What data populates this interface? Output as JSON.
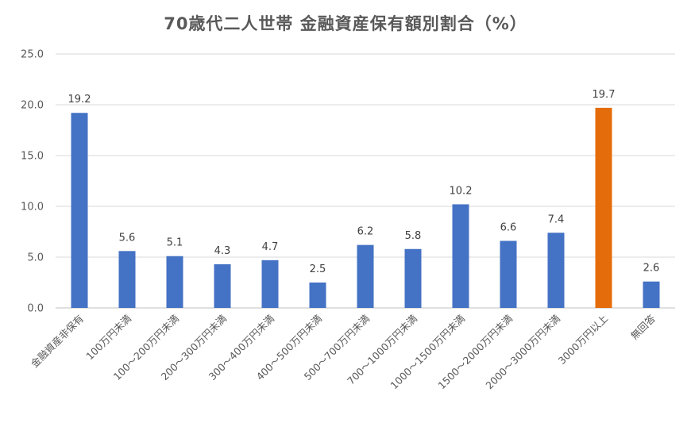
{
  "chart_data": {
    "type": "bar",
    "title": "70歳代二人世帯 金融資産保有額別割合（%）",
    "xlabel": "",
    "ylabel": "",
    "ylim": [
      0,
      25
    ],
    "yticks": [
      "0.0",
      "5.0",
      "10.0",
      "15.0",
      "20.0",
      "25.0"
    ],
    "grid": true,
    "categories": [
      "金融資産非保有",
      "100万円未満",
      "100～200万円未満",
      "200～300万円未満",
      "300～400万円未満",
      "400～500万円未満",
      "500～700万円未満",
      "700～1000万円未満",
      "1000～1500万円未満",
      "1500～2000万円未満",
      "2000～3000万円未満",
      "3000万円以上",
      "無回答"
    ],
    "values": [
      19.2,
      5.6,
      5.1,
      4.3,
      4.7,
      2.5,
      6.2,
      5.8,
      10.2,
      6.6,
      7.4,
      19.7,
      2.6
    ],
    "data_labels": [
      "19.2",
      "5.6",
      "5.1",
      "4.3",
      "4.7",
      "2.5",
      "6.2",
      "5.8",
      "10.2",
      "6.6",
      "7.4",
      "19.7",
      "2.6"
    ],
    "colors": {
      "default_bar": "#4472c4",
      "highlight_bar": "#e46c0a"
    },
    "highlight_category": "3000万円以上"
  }
}
